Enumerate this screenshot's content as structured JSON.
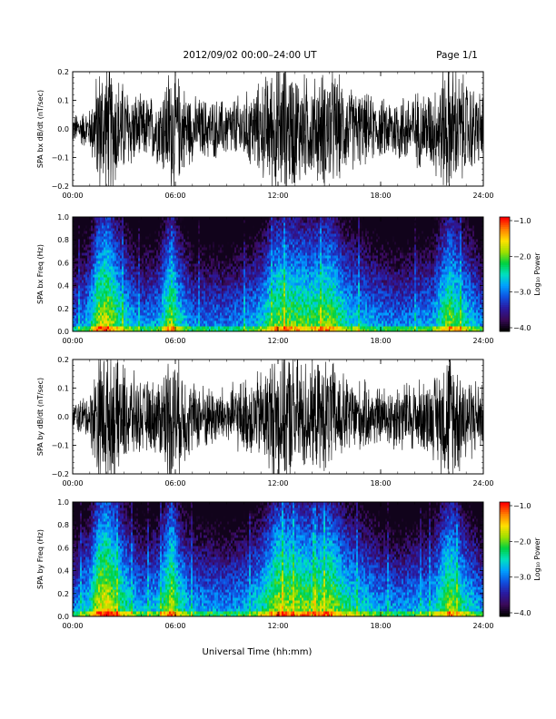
{
  "header": {
    "title": "2012/09/02  00:00–24:00 UT",
    "page": "Page 1/1"
  },
  "figure": {
    "xlabel": "Universal Time (hh:mm)"
  },
  "colors": {
    "trace": "#000000",
    "colormap": [
      "#000000",
      "#3a0a5a",
      "#2a1aa0",
      "#1050e0",
      "#00a0ff",
      "#00e0c0",
      "#00d040",
      "#a0e000",
      "#ffe000",
      "#ff8000",
      "#ff0000"
    ]
  },
  "chart_data": [
    {
      "type": "line",
      "ylabel": "SPA bx dB/dt (nT/sec)",
      "ylim": [
        -0.2,
        0.2
      ],
      "yticks": [
        "0.2",
        "0.1",
        "0.0",
        "−0.1",
        "−0.2"
      ],
      "xlim": [
        "00:00",
        "24:00"
      ],
      "xticks": [
        "00:00",
        "06:00",
        "12:00",
        "18:00",
        "24:00"
      ],
      "activity_hours": [
        0,
        1,
        1.5,
        2,
        3,
        4,
        5,
        5.8,
        6.2,
        7,
        9,
        10,
        11,
        12,
        13,
        14,
        15,
        16,
        18,
        19,
        21,
        22,
        23,
        24
      ],
      "amplitude": [
        0.05,
        0.07,
        0.22,
        0.25,
        0.16,
        0.11,
        0.12,
        0.24,
        0.18,
        0.11,
        0.1,
        0.12,
        0.16,
        0.25,
        0.21,
        0.17,
        0.22,
        0.15,
        0.1,
        0.12,
        0.14,
        0.25,
        0.17,
        0.12
      ]
    },
    {
      "type": "heatmap",
      "ylabel": "SPA bx Freq (Hz)",
      "ylim": [
        0.0,
        1.0
      ],
      "yticks": [
        "1.0",
        "0.8",
        "0.6",
        "0.4",
        "0.2",
        "0.0"
      ],
      "xlim": [
        "00:00",
        "24:00"
      ],
      "xticks": [
        "00:00",
        "06:00",
        "12:00",
        "18:00",
        "24:00"
      ],
      "colorbar": {
        "label": "Log₁₀ Power",
        "ticks": [
          "−1.0",
          "−2.0",
          "−3.0",
          "−4.0"
        ],
        "range": [
          -4.0,
          -1.0
        ]
      },
      "activity_hours": [
        0,
        1,
        1.5,
        2,
        3,
        4,
        5,
        5.8,
        6.2,
        7,
        9,
        10,
        11,
        12,
        13,
        14,
        15,
        16,
        18,
        19,
        21,
        22,
        23,
        24
      ],
      "level": [
        0.35,
        0.5,
        0.75,
        0.8,
        0.55,
        0.4,
        0.45,
        0.75,
        0.55,
        0.4,
        0.38,
        0.42,
        0.5,
        0.72,
        0.68,
        0.66,
        0.72,
        0.55,
        0.42,
        0.4,
        0.45,
        0.72,
        0.55,
        0.4
      ]
    },
    {
      "type": "line",
      "ylabel": "SPA by dB/dt (nT/sec)",
      "ylim": [
        -0.2,
        0.2
      ],
      "yticks": [
        "0.2",
        "0.1",
        "0.0",
        "−0.1",
        "−0.2"
      ],
      "xlim": [
        "00:00",
        "24:00"
      ],
      "xticks": [
        "00:00",
        "06:00",
        "12:00",
        "18:00",
        "24:00"
      ],
      "activity_hours": [
        0,
        1,
        1.5,
        2,
        3,
        4,
        5,
        5.8,
        6.2,
        7,
        9,
        10,
        11,
        12,
        13,
        14,
        15,
        16,
        18,
        19,
        21,
        22,
        23,
        24
      ],
      "amplitude": [
        0.05,
        0.08,
        0.24,
        0.25,
        0.18,
        0.12,
        0.13,
        0.25,
        0.2,
        0.12,
        0.1,
        0.13,
        0.16,
        0.25,
        0.23,
        0.18,
        0.2,
        0.14,
        0.1,
        0.12,
        0.13,
        0.25,
        0.16,
        0.11
      ]
    },
    {
      "type": "heatmap",
      "ylabel": "SPA by Freq (Hz)",
      "ylim": [
        0.0,
        1.0
      ],
      "yticks": [
        "1.0",
        "0.8",
        "0.6",
        "0.4",
        "0.2",
        "0.0"
      ],
      "xlim": [
        "00:00",
        "24:00"
      ],
      "xticks": [
        "00:00",
        "06:00",
        "12:00",
        "18:00",
        "24:00"
      ],
      "colorbar": {
        "label": "Log₁₀ Power",
        "ticks": [
          "−1.0",
          "−2.0",
          "−3.0",
          "−4.0"
        ],
        "range": [
          -4.0,
          -1.0
        ]
      },
      "activity_hours": [
        0,
        1,
        1.5,
        2,
        3,
        4,
        5,
        5.8,
        6.2,
        7,
        9,
        10,
        11,
        12,
        13,
        14,
        15,
        16,
        18,
        19,
        21,
        22,
        23,
        24
      ],
      "level": [
        0.4,
        0.55,
        0.8,
        0.85,
        0.6,
        0.45,
        0.5,
        0.8,
        0.6,
        0.45,
        0.42,
        0.45,
        0.55,
        0.78,
        0.74,
        0.7,
        0.76,
        0.6,
        0.45,
        0.42,
        0.48,
        0.75,
        0.55,
        0.42
      ]
    }
  ]
}
